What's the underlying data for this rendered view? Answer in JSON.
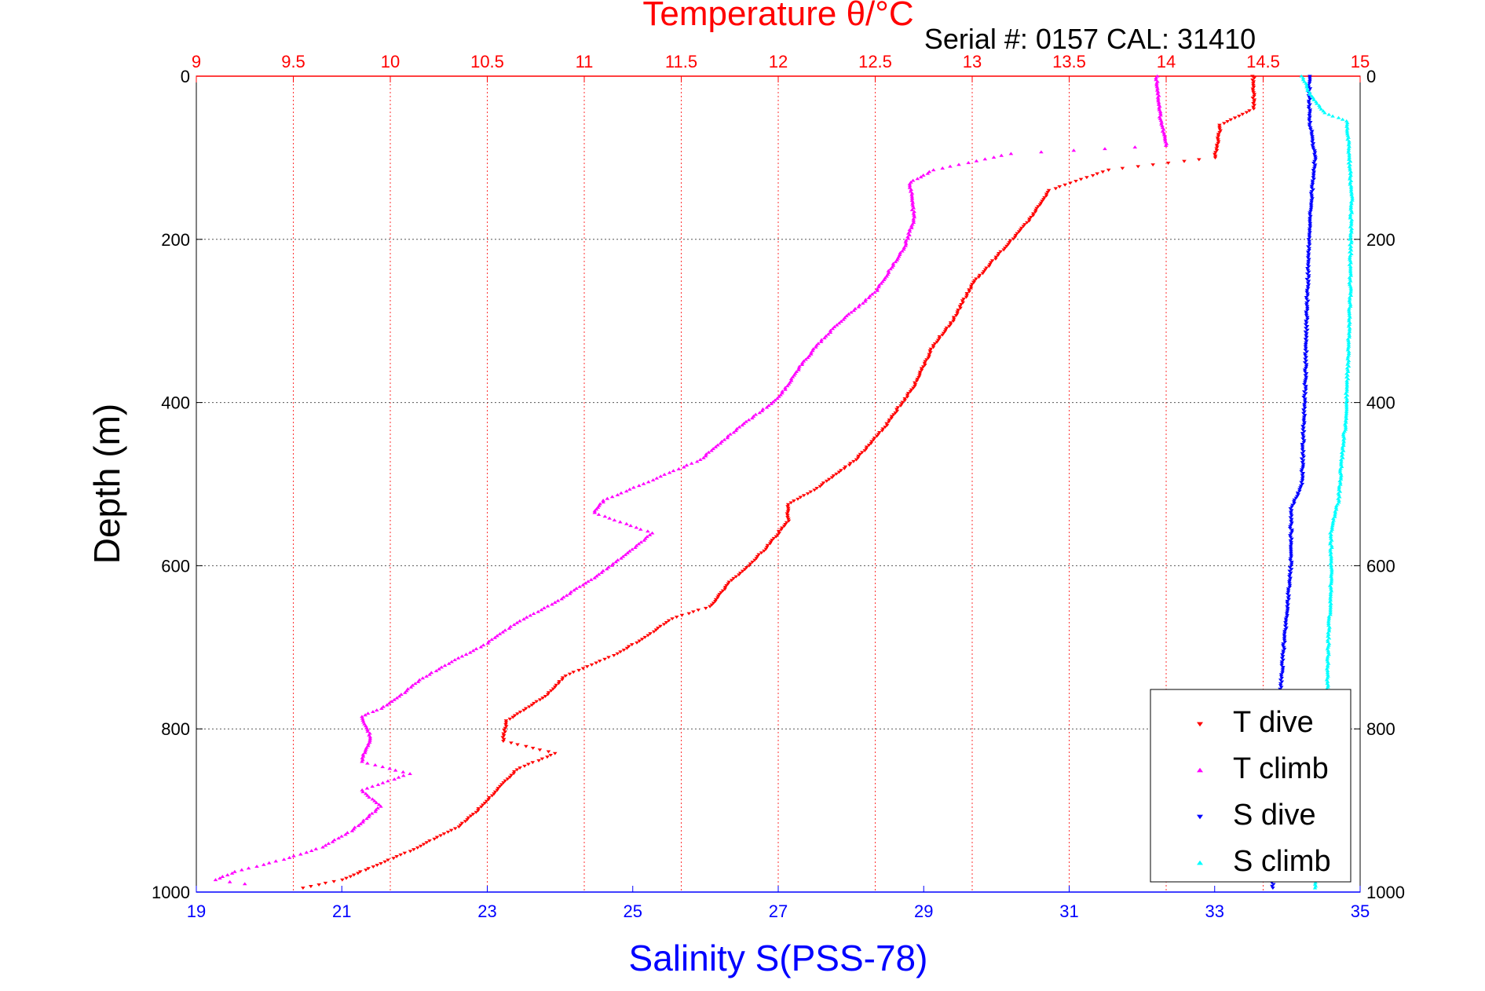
{
  "chart_data": {
    "type": "scatter",
    "title": "Temperature θ/°C",
    "subtitle": "Serial #: 0157  CAL: 31410",
    "xlabel": "Salinity S(PSS-78)",
    "ylabel": "Depth (m)",
    "x_bottom": {
      "min": 19,
      "max": 35,
      "ticks": [
        "19",
        "21",
        "23",
        "25",
        "27",
        "29",
        "31",
        "33",
        "35"
      ],
      "color": "#0000ff"
    },
    "x_top": {
      "min": 9,
      "max": 15,
      "ticks": [
        "9",
        "9.5",
        "10",
        "10.5",
        "11",
        "11.5",
        "12",
        "12.5",
        "13",
        "13.5",
        "14",
        "14.5",
        "15"
      ],
      "color": "#ff0000"
    },
    "y": {
      "min": 0,
      "max": 1000,
      "reversed": true,
      "ticks": [
        "0",
        "200",
        "400",
        "600",
        "800",
        "1000"
      ]
    },
    "grid": true,
    "legend_position": "bottom-right",
    "series": [
      {
        "name": "T dive",
        "axis": "temperature",
        "color": "#ff0000",
        "marker": "triangle-down",
        "points": [
          [
            14.45,
            0
          ],
          [
            14.45,
            40
          ],
          [
            14.28,
            60
          ],
          [
            14.25,
            100
          ],
          [
            13.7,
            115
          ],
          [
            13.4,
            140
          ],
          [
            13.3,
            175
          ],
          [
            13.15,
            215
          ],
          [
            13.0,
            255
          ],
          [
            12.9,
            300
          ],
          [
            12.8,
            330
          ],
          [
            12.7,
            380
          ],
          [
            12.55,
            430
          ],
          [
            12.4,
            470
          ],
          [
            12.2,
            505
          ],
          [
            12.05,
            525
          ],
          [
            12.05,
            545
          ],
          [
            11.95,
            575
          ],
          [
            11.85,
            600
          ],
          [
            11.75,
            620
          ],
          [
            11.65,
            650
          ],
          [
            11.45,
            665
          ],
          [
            11.3,
            690
          ],
          [
            11.15,
            710
          ],
          [
            10.9,
            735
          ],
          [
            10.8,
            760
          ],
          [
            10.6,
            790
          ],
          [
            10.58,
            815
          ],
          [
            10.85,
            830
          ],
          [
            10.65,
            850
          ],
          [
            10.55,
            875
          ],
          [
            10.45,
            900
          ],
          [
            10.35,
            920
          ],
          [
            10.1,
            950
          ],
          [
            9.95,
            965
          ],
          [
            9.85,
            975
          ],
          [
            9.75,
            985
          ],
          [
            9.55,
            995
          ]
        ]
      },
      {
        "name": "T climb",
        "axis": "temperature",
        "color": "#ff00ff",
        "marker": "triangle-up",
        "points": [
          [
            13.95,
            0
          ],
          [
            13.97,
            50
          ],
          [
            14.0,
            85
          ],
          [
            13.2,
            95
          ],
          [
            12.8,
            115
          ],
          [
            12.68,
            130
          ],
          [
            12.7,
            175
          ],
          [
            12.65,
            210
          ],
          [
            12.5,
            265
          ],
          [
            12.3,
            305
          ],
          [
            12.2,
            330
          ],
          [
            12.1,
            360
          ],
          [
            12.0,
            395
          ],
          [
            11.8,
            430
          ],
          [
            11.6,
            470
          ],
          [
            11.35,
            495
          ],
          [
            11.1,
            520
          ],
          [
            11.05,
            535
          ],
          [
            11.35,
            560
          ],
          [
            11.25,
            580
          ],
          [
            11.05,
            615
          ],
          [
            10.85,
            645
          ],
          [
            10.65,
            670
          ],
          [
            10.5,
            695
          ],
          [
            10.3,
            720
          ],
          [
            10.15,
            740
          ],
          [
            10.05,
            760
          ],
          [
            9.95,
            775
          ],
          [
            9.85,
            785
          ],
          [
            9.9,
            810
          ],
          [
            9.85,
            840
          ],
          [
            10.1,
            855
          ],
          [
            9.85,
            875
          ],
          [
            9.95,
            895
          ],
          [
            9.8,
            925
          ],
          [
            9.65,
            945
          ],
          [
            9.45,
            960
          ],
          [
            9.2,
            975
          ],
          [
            9.1,
            985
          ],
          [
            9.25,
            990
          ]
        ]
      },
      {
        "name": "S dive",
        "axis": "salinity",
        "color": "#0000ff",
        "marker": "triangle-down",
        "points": [
          [
            34.3,
            0
          ],
          [
            34.3,
            50
          ],
          [
            34.38,
            100
          ],
          [
            34.33,
            150
          ],
          [
            34.3,
            200
          ],
          [
            34.27,
            280
          ],
          [
            34.25,
            360
          ],
          [
            34.22,
            440
          ],
          [
            34.2,
            500
          ],
          [
            34.05,
            530
          ],
          [
            34.05,
            600
          ],
          [
            34.0,
            650
          ],
          [
            33.95,
            700
          ],
          [
            33.9,
            760
          ],
          [
            33.85,
            800
          ],
          [
            33.82,
            850
          ],
          [
            33.8,
            900
          ],
          [
            33.78,
            950
          ],
          [
            33.8,
            995
          ]
        ]
      },
      {
        "name": "S climb",
        "axis": "salinity",
        "color": "#00ffff",
        "marker": "triangle-up",
        "points": [
          [
            34.2,
            0
          ],
          [
            34.3,
            20
          ],
          [
            34.5,
            45
          ],
          [
            34.82,
            55
          ],
          [
            34.85,
            100
          ],
          [
            34.88,
            150
          ],
          [
            34.87,
            200
          ],
          [
            34.86,
            280
          ],
          [
            34.83,
            360
          ],
          [
            34.8,
            420
          ],
          [
            34.75,
            470
          ],
          [
            34.7,
            520
          ],
          [
            34.6,
            560
          ],
          [
            34.6,
            620
          ],
          [
            34.57,
            680
          ],
          [
            34.55,
            740
          ],
          [
            34.55,
            800
          ],
          [
            34.5,
            870
          ],
          [
            34.45,
            940
          ],
          [
            34.38,
            995
          ]
        ]
      }
    ]
  },
  "legend": {
    "items": [
      {
        "label": "T dive",
        "color": "#ff0000",
        "marker": "triangle-down"
      },
      {
        "label": "T climb",
        "color": "#ff00ff",
        "marker": "triangle-up"
      },
      {
        "label": "S dive",
        "color": "#0000ff",
        "marker": "triangle-down"
      },
      {
        "label": "S climb",
        "color": "#00ffff",
        "marker": "triangle-up"
      }
    ]
  }
}
